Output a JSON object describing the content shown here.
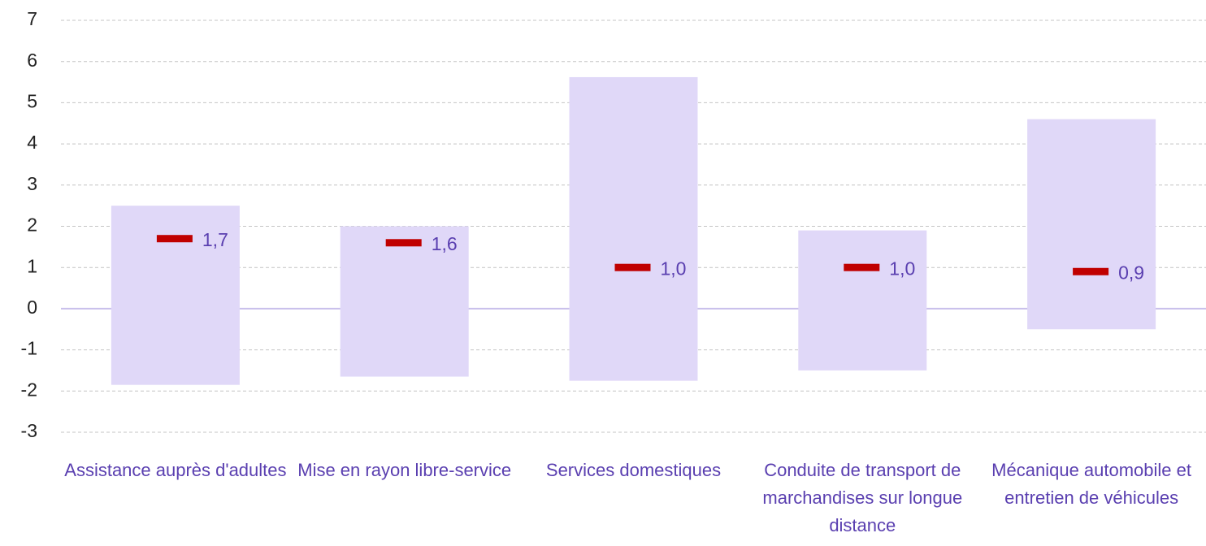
{
  "chart_data": {
    "type": "range",
    "categories": [
      "Assistance auprès d'adultes",
      "Mise en rayon libre-service",
      "Services domestiques",
      "Conduite de transport de marchandises sur longue distance",
      "Mécanique automobile et entretien de véhicules"
    ],
    "low": [
      -1.85,
      -1.65,
      -1.75,
      -1.5,
      -0.5
    ],
    "high": [
      2.5,
      2.0,
      5.62,
      1.9,
      4.6
    ],
    "values": [
      1.7,
      1.6,
      1.0,
      1.0,
      0.9
    ],
    "value_labels": [
      "1,7",
      "1,6",
      "1,0",
      "1,0",
      "0,9"
    ],
    "bar_color": "#e0d8f8",
    "marker_color": "#c00000",
    "ylim": [
      -3,
      7
    ],
    "yticks": [
      -3,
      -2,
      -1,
      0,
      1,
      2,
      3,
      4,
      5,
      6,
      7
    ],
    "grid": true
  }
}
